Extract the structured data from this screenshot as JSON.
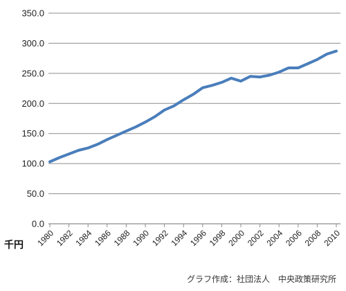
{
  "chart_data": {
    "type": "line",
    "ylabel": "千円",
    "ylim": [
      0,
      350
    ],
    "yticks": [
      "0.0",
      "50.0",
      "100.0",
      "150.0",
      "200.0",
      "250.0",
      "300.0",
      "350.0"
    ],
    "xlim": [
      1980,
      2010
    ],
    "xticks": [
      "1980",
      "1982",
      "1984",
      "1986",
      "1988",
      "1990",
      "1992",
      "1994",
      "1996",
      "1998",
      "2000",
      "2002",
      "2004",
      "2006",
      "2008",
      "2010"
    ],
    "grid": "horizontal",
    "series": [
      {
        "color": "#4a7ebb",
        "x": [
          1980,
          1981,
          1982,
          1983,
          1984,
          1985,
          1986,
          1987,
          1988,
          1989,
          1990,
          1991,
          1992,
          1993,
          1994,
          1995,
          1996,
          1997,
          1998,
          1999,
          2000,
          2001,
          2002,
          2003,
          2004,
          2005,
          2006,
          2007,
          2008,
          2009,
          2010
        ],
        "values": [
          103,
          110,
          116,
          122,
          126,
          132,
          140,
          147,
          154,
          161,
          169,
          178,
          189,
          196,
          206,
          215,
          226,
          230,
          235,
          242,
          237,
          245,
          244,
          247,
          252,
          259,
          259,
          266,
          273,
          282,
          287
        ]
      }
    ]
  },
  "credit": "グラフ作成：社団法人　中央政策研究所"
}
